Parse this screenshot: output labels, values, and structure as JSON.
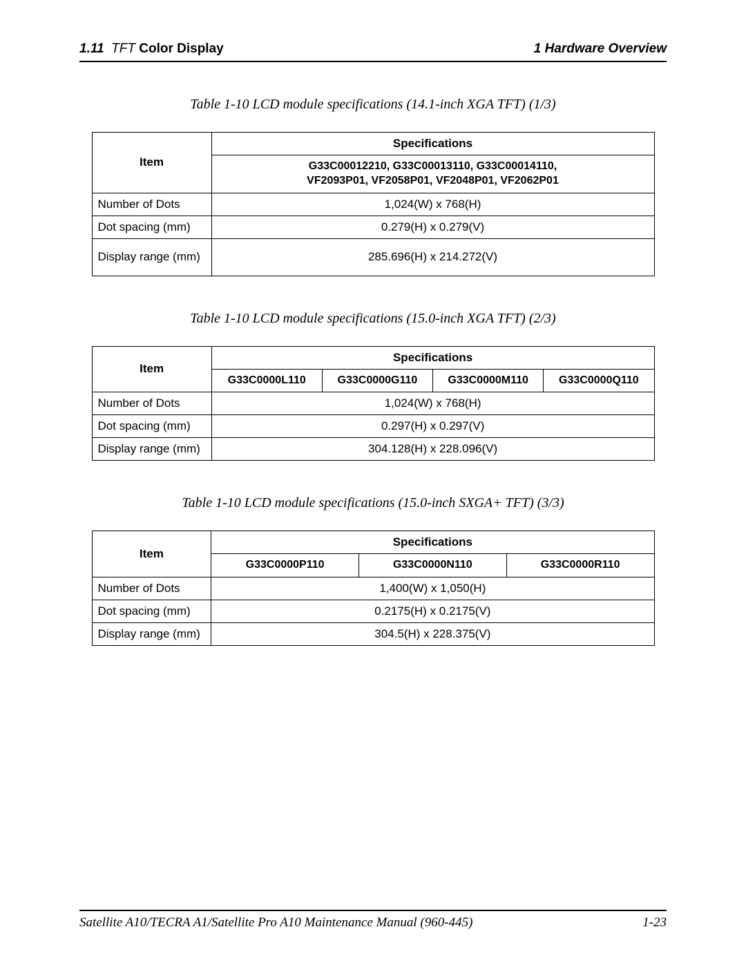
{
  "header": {
    "section_number": "1.11",
    "section_name_italic": "TFT",
    "section_name_bold": "Color Display",
    "chapter": "1  Hardware Overview"
  },
  "table1": {
    "caption": "Table 1-10  LCD module specifications (14.1-inch XGA TFT) (1/3)",
    "item_header": "Item",
    "spec_header": "Specifications",
    "spec_subheader_line1": "G33C00012210, G33C00013110, G33C00014110,",
    "spec_subheader_line2": "VF2093P01, VF2058P01, VF2048P01, VF2062P01",
    "rows": [
      {
        "item": "Number of Dots",
        "spec": "1,024(W)  x  768(H)"
      },
      {
        "item": "Dot spacing (mm)",
        "spec": "0.279(H) x 0.279(V)"
      },
      {
        "item": "Display range (mm)",
        "spec": "285.696(H) x 214.272(V)"
      }
    ]
  },
  "table2": {
    "caption": "Table 1-10  LCD module specifications (15.0-inch XGA TFT) (2/3)",
    "item_header": "Item",
    "spec_header": "Specifications",
    "col1": "G33C0000L110",
    "col2": "G33C0000G110",
    "col3": "G33C0000M110",
    "col4": "G33C0000Q110",
    "rows": [
      {
        "item": "Number of Dots",
        "spec": "1,024(W) x 768(H)"
      },
      {
        "item": "Dot spacing (mm)",
        "spec": "0.297(H) x 0.297(V)"
      },
      {
        "item": "Display range (mm)",
        "spec": "304.128(H) x 228.096(V)"
      }
    ]
  },
  "table3": {
    "caption": "Table 1-10  LCD module specifications (15.0-inch SXGA+ TFT) (3/3)",
    "item_header": "Item",
    "spec_header": "Specifications",
    "col1": "G33C0000P110",
    "col2": "G33C0000N110",
    "col3": "G33C0000R110",
    "rows": [
      {
        "item": "Number of Dots",
        "spec": "1,400(W) x 1,050(H)"
      },
      {
        "item": "Dot spacing (mm)",
        "spec": "0.2175(H) x 0.2175(V)"
      },
      {
        "item": "Display range (mm)",
        "spec": "304.5(H) x 228.375(V)"
      }
    ]
  },
  "footer": {
    "manual": "Satellite A10/TECRA A1/Satellite Pro A10  Maintenance Manual (960-445)",
    "page": "1-23"
  },
  "styles": {
    "page_bg": "#ffffff",
    "border_color": "#000000",
    "font_body": "Arial",
    "font_caption": "Times New Roman",
    "caption_fontsize": 20,
    "table_fontsize": 17,
    "header_fontsize": 19,
    "border_width": 1.5
  }
}
